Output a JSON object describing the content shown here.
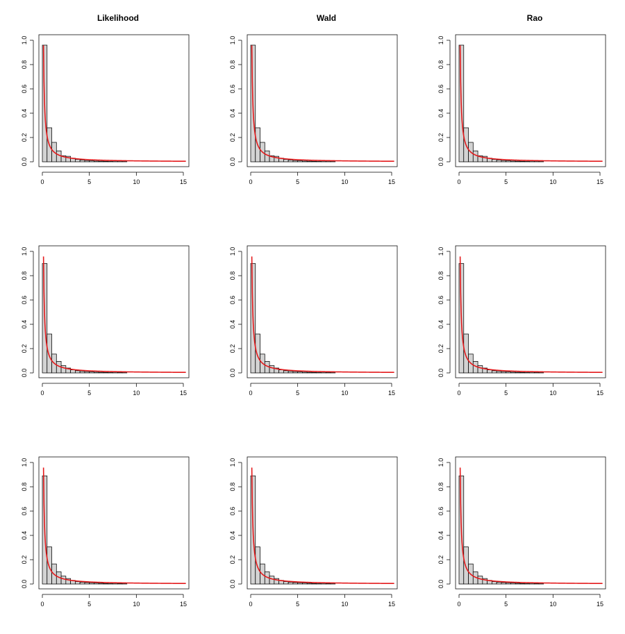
{
  "chart_data": [
    {
      "type": "bar",
      "title": "Likelihood",
      "xlim": [
        0,
        15.5
      ],
      "ylim": [
        0,
        1.0
      ],
      "xticks": [
        0,
        5,
        10,
        15
      ],
      "yticks": [
        0.0,
        0.2,
        0.4,
        0.6,
        0.8,
        1.0
      ],
      "bin_width": 0.5,
      "bin_start": 0,
      "values": [
        0.96,
        0.28,
        0.16,
        0.09,
        0.05,
        0.045,
        0.03,
        0.02,
        0.015,
        0.01,
        0.008,
        0.006,
        0.005,
        0.004,
        0.003,
        0.002,
        0.006,
        0.002
      ],
      "curve": {
        "type": "density",
        "peak": 0.96,
        "decay": 1.05
      },
      "curve_color": "#e41a1c",
      "bar_color": "#d3d3d3"
    },
    {
      "type": "bar",
      "title": "Wald",
      "xlim": [
        0,
        15.5
      ],
      "ylim": [
        0,
        1.0
      ],
      "xticks": [
        0,
        5,
        10,
        15
      ],
      "yticks": [
        0.0,
        0.2,
        0.4,
        0.6,
        0.8,
        1.0
      ],
      "bin_width": 0.5,
      "bin_start": 0,
      "values": [
        0.96,
        0.28,
        0.16,
        0.09,
        0.05,
        0.045,
        0.03,
        0.02,
        0.015,
        0.01,
        0.008,
        0.006,
        0.005,
        0.004,
        0.003,
        0.002,
        0.006,
        0.002
      ],
      "curve": {
        "type": "density",
        "peak": 0.96,
        "decay": 1.05
      },
      "curve_color": "#e41a1c",
      "bar_color": "#d3d3d3"
    },
    {
      "type": "bar",
      "title": "Rao",
      "xlim": [
        0,
        15.5
      ],
      "ylim": [
        0,
        1.0
      ],
      "xticks": [
        0,
        5,
        10,
        15
      ],
      "yticks": [
        0.0,
        0.2,
        0.4,
        0.6,
        0.8,
        1.0
      ],
      "bin_width": 0.5,
      "bin_start": 0,
      "values": [
        0.96,
        0.28,
        0.16,
        0.09,
        0.05,
        0.045,
        0.03,
        0.02,
        0.015,
        0.01,
        0.008,
        0.006,
        0.005,
        0.004,
        0.003,
        0.002,
        0.006,
        0.002
      ],
      "curve": {
        "type": "density",
        "peak": 0.96,
        "decay": 1.05
      },
      "curve_color": "#e41a1c",
      "bar_color": "#d3d3d3"
    },
    {
      "type": "bar",
      "title": "",
      "xlim": [
        0,
        15.5
      ],
      "ylim": [
        0,
        1.0
      ],
      "xticks": [
        0,
        5,
        10,
        15
      ],
      "yticks": [
        0.0,
        0.2,
        0.4,
        0.6,
        0.8,
        1.0
      ],
      "bin_width": 0.5,
      "bin_start": 0,
      "values": [
        0.9,
        0.32,
        0.155,
        0.095,
        0.06,
        0.04,
        0.025,
        0.018,
        0.012,
        0.01,
        0.008,
        0.006,
        0.005,
        0.004,
        0.003,
        0.002,
        0.005,
        0.002
      ],
      "curve": {
        "type": "density",
        "peak": 0.96,
        "decay": 1.05
      },
      "curve_color": "#e41a1c",
      "bar_color": "#d3d3d3"
    },
    {
      "type": "bar",
      "title": "",
      "xlim": [
        0,
        15.5
      ],
      "ylim": [
        0,
        1.0
      ],
      "xticks": [
        0,
        5,
        10,
        15
      ],
      "yticks": [
        0.0,
        0.2,
        0.4,
        0.6,
        0.8,
        1.0
      ],
      "bin_width": 0.5,
      "bin_start": 0,
      "values": [
        0.9,
        0.32,
        0.155,
        0.095,
        0.06,
        0.04,
        0.025,
        0.018,
        0.012,
        0.01,
        0.008,
        0.006,
        0.005,
        0.004,
        0.003,
        0.002,
        0.005,
        0.002
      ],
      "curve": {
        "type": "density",
        "peak": 0.96,
        "decay": 1.05
      },
      "curve_color": "#e41a1c",
      "bar_color": "#d3d3d3"
    },
    {
      "type": "bar",
      "title": "",
      "xlim": [
        0,
        15.5
      ],
      "ylim": [
        0,
        1.0
      ],
      "xticks": [
        0,
        5,
        10,
        15
      ],
      "yticks": [
        0.0,
        0.2,
        0.4,
        0.6,
        0.8,
        1.0
      ],
      "bin_width": 0.5,
      "bin_start": 0,
      "values": [
        0.9,
        0.32,
        0.155,
        0.095,
        0.06,
        0.04,
        0.025,
        0.018,
        0.012,
        0.01,
        0.008,
        0.006,
        0.005,
        0.004,
        0.003,
        0.002,
        0.005,
        0.002
      ],
      "curve": {
        "type": "density",
        "peak": 0.96,
        "decay": 1.05
      },
      "curve_color": "#e41a1c",
      "bar_color": "#d3d3d3"
    },
    {
      "type": "bar",
      "title": "",
      "xlim": [
        0,
        15.5
      ],
      "ylim": [
        0,
        1.0
      ],
      "xticks": [
        0,
        5,
        10,
        15
      ],
      "yticks": [
        0.0,
        0.2,
        0.4,
        0.6,
        0.8,
        1.0
      ],
      "bin_width": 0.5,
      "bin_start": 0,
      "values": [
        0.89,
        0.305,
        0.165,
        0.1,
        0.065,
        0.045,
        0.03,
        0.02,
        0.015,
        0.012,
        0.01,
        0.008,
        0.006,
        0.004,
        0.003,
        0.002,
        0.003,
        0.002
      ],
      "curve": {
        "type": "density",
        "peak": 0.96,
        "decay": 1.05
      },
      "curve_color": "#e41a1c",
      "bar_color": "#d3d3d3"
    },
    {
      "type": "bar",
      "title": "",
      "xlim": [
        0,
        15.5
      ],
      "ylim": [
        0,
        1.0
      ],
      "xticks": [
        0,
        5,
        10,
        15
      ],
      "yticks": [
        0.0,
        0.2,
        0.4,
        0.6,
        0.8,
        1.0
      ],
      "bin_width": 0.5,
      "bin_start": 0,
      "values": [
        0.89,
        0.305,
        0.165,
        0.1,
        0.065,
        0.045,
        0.03,
        0.02,
        0.015,
        0.012,
        0.01,
        0.008,
        0.006,
        0.004,
        0.003,
        0.002,
        0.003,
        0.002
      ],
      "curve": {
        "type": "density",
        "peak": 0.96,
        "decay": 1.05
      },
      "curve_color": "#e41a1c",
      "bar_color": "#d3d3d3"
    },
    {
      "type": "bar",
      "title": "",
      "xlim": [
        0,
        15.5
      ],
      "ylim": [
        0,
        1.0
      ],
      "xticks": [
        0,
        5,
        10,
        15
      ],
      "yticks": [
        0.0,
        0.2,
        0.4,
        0.6,
        0.8,
        1.0
      ],
      "bin_width": 0.5,
      "bin_start": 0,
      "values": [
        0.89,
        0.305,
        0.165,
        0.1,
        0.065,
        0.045,
        0.03,
        0.02,
        0.015,
        0.012,
        0.01,
        0.008,
        0.006,
        0.004,
        0.003,
        0.002,
        0.003,
        0.002
      ],
      "curve": {
        "type": "density",
        "peak": 0.96,
        "decay": 1.05
      },
      "curve_color": "#e41a1c",
      "bar_color": "#d3d3d3"
    }
  ]
}
